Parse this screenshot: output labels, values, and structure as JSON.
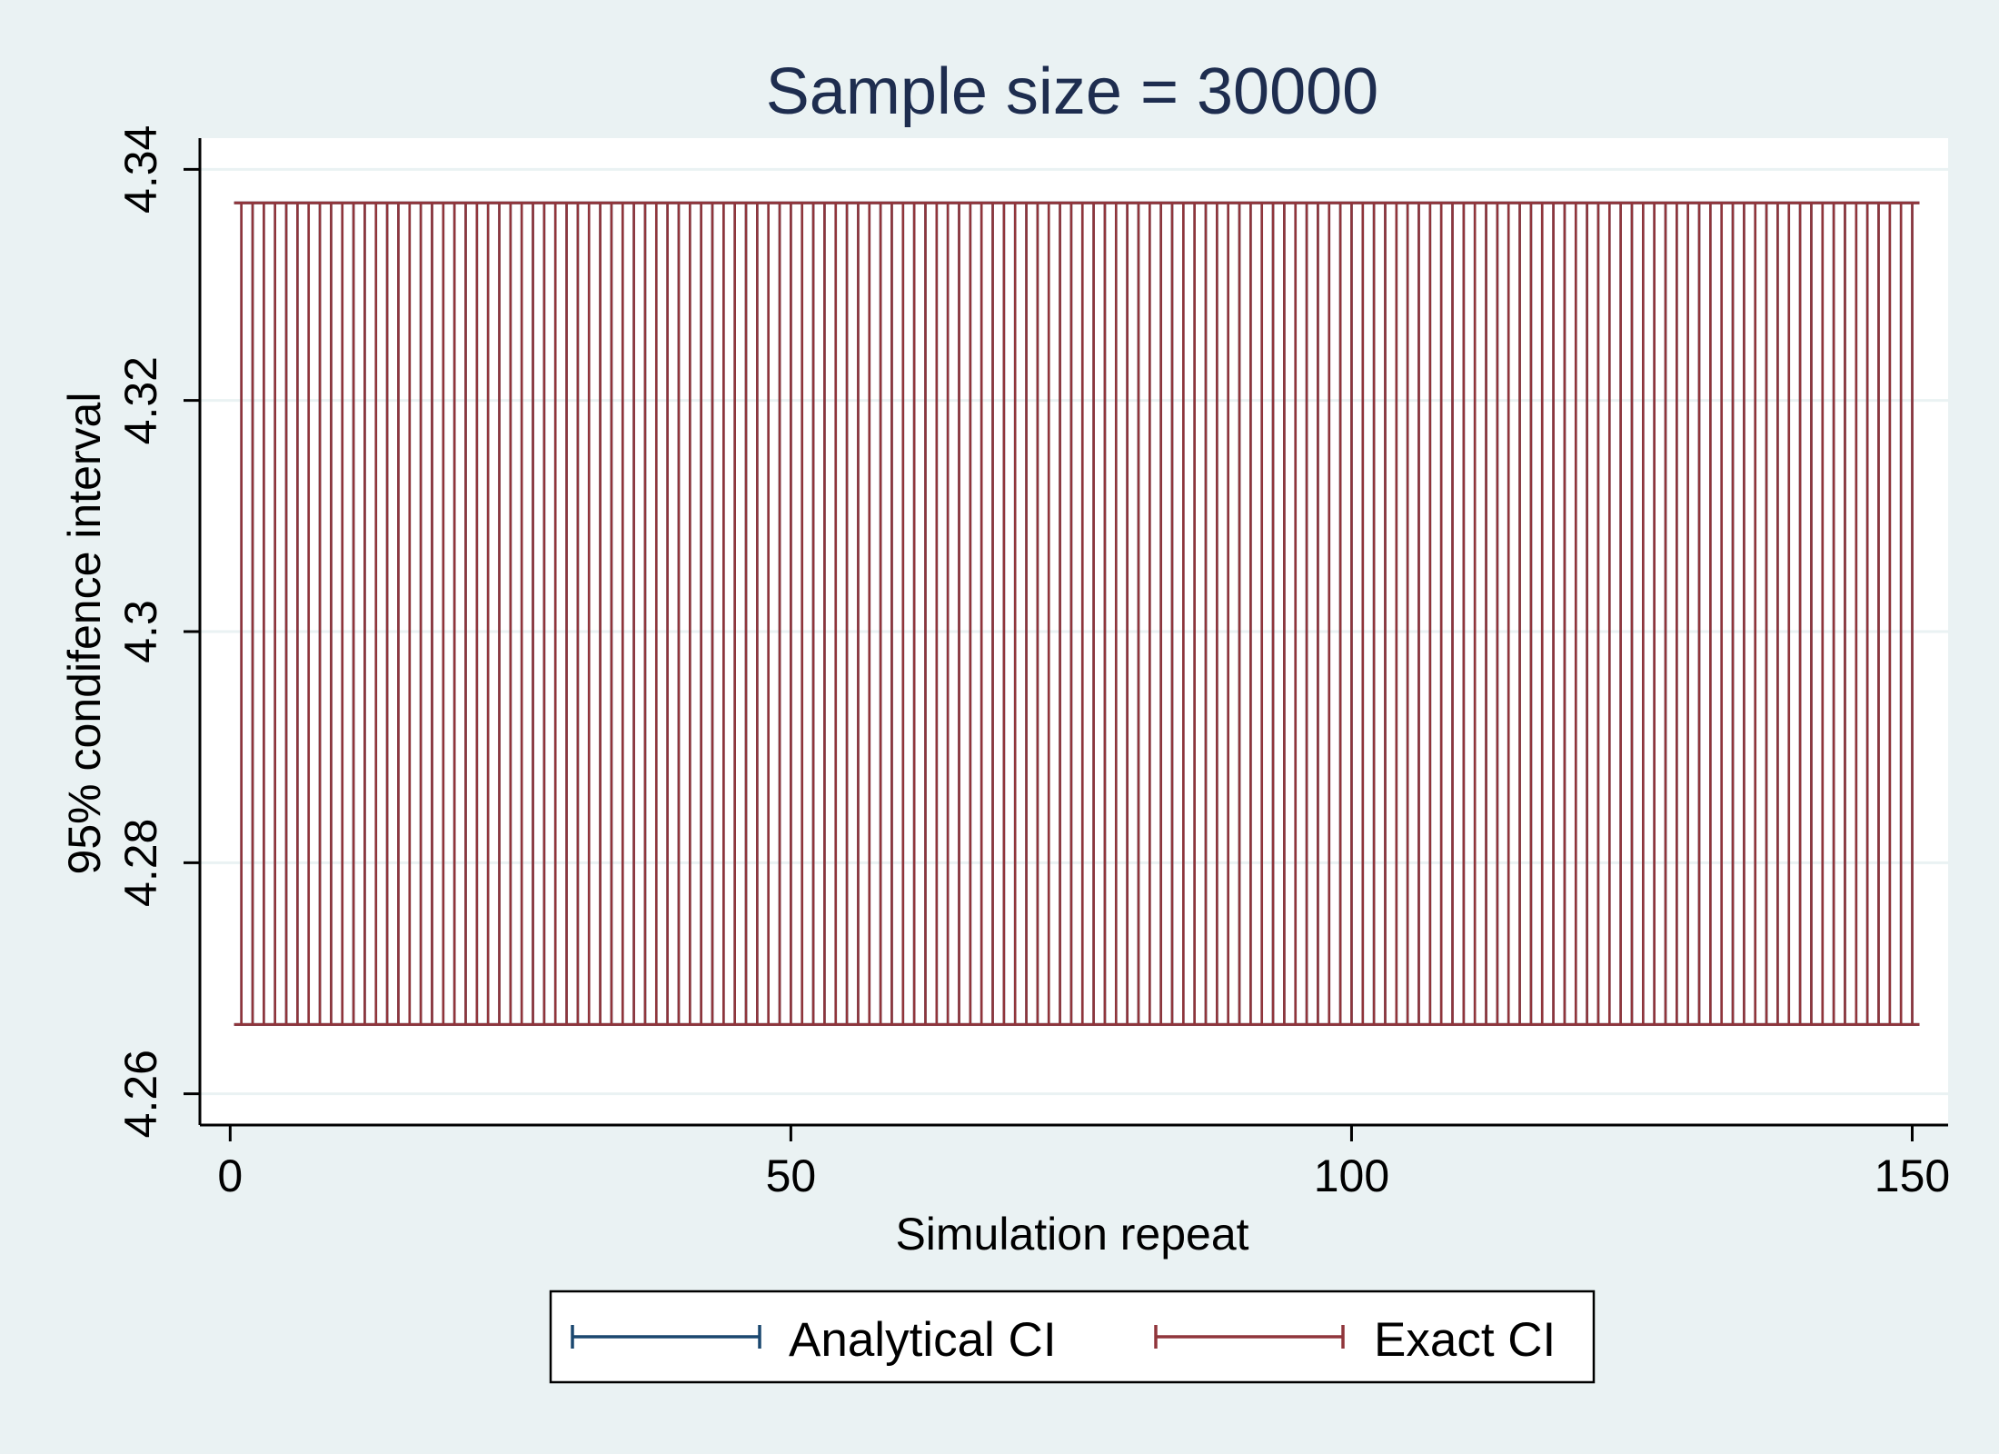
{
  "chart_data": {
    "type": "errorbar",
    "title": "Sample size = 30000",
    "xlabel": "Simulation repeat",
    "ylabel": "95% condifence interval",
    "xlim": [
      -2.7,
      153.2
    ],
    "ylim": [
      4.2573,
      4.3427
    ],
    "xticks": [
      0,
      50,
      100,
      150
    ],
    "xtick_labels": [
      "0",
      "50",
      "100",
      "150"
    ],
    "yticks": [
      4.26,
      4.28,
      4.3,
      4.32,
      4.34
    ],
    "ytick_labels": [
      "4.26",
      "4.28",
      "4.3",
      "4.32",
      "4.34"
    ],
    "grid": true,
    "legend_position": "bottom",
    "n_repeats": 150,
    "series": [
      {
        "name": "Analytical CI",
        "color": "#1a476f",
        "x_start": 1,
        "x_end": 150,
        "lower": 4.266,
        "upper": 4.3371
      },
      {
        "name": "Exact CI",
        "color": "#90353b",
        "x_start": 1,
        "x_end": 150,
        "lower": 4.266,
        "upper": 4.3371
      }
    ]
  },
  "colors": {
    "background": "#eaf2f3",
    "plot_area": "#ffffff",
    "grid": "#eaf2f3",
    "title": "#1e2d4f"
  }
}
